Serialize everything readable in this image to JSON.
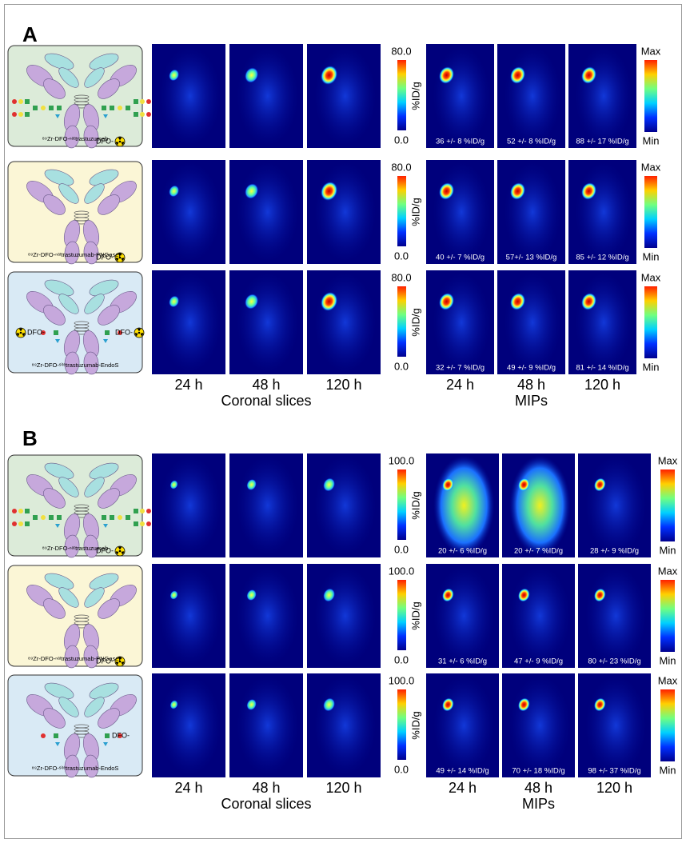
{
  "panels": [
    {
      "label": "A",
      "scale_left": {
        "max": "80.0",
        "min": "0.0",
        "unit": "%ID/g"
      },
      "scale_right": {
        "max": "Max",
        "min": "Min"
      },
      "rows": [
        {
          "construct": "⁸⁹Zr-DFO-ⁿᵃᵗtrastuzumab",
          "dfo_labels": [
            "DFO-"
          ],
          "mip_values": [
            "36 +/- 8 %ID/g",
            "52 +/- 8 %ID/g",
            "88 +/- 17 %ID/g"
          ]
        },
        {
          "construct": "⁸⁹Zr-DFO-ⁿᵃᵗtrastuzumab-PNGaseF",
          "dfo_labels": [
            "DFO-"
          ],
          "mip_values": [
            "40 +/- 7 %ID/g",
            "57+/- 13 %ID/g",
            "85 +/- 12 %ID/g"
          ]
        },
        {
          "construct": "⁸⁹Zr-DFO-ˢⁱᵗᵉtrastuzumab-EndoS",
          "dfo_labels": [
            "DFO-",
            "DFO-"
          ],
          "mip_values": [
            "32 +/- 7 %ID/g",
            "49 +/- 9 %ID/g",
            "81 +/- 14 %ID/g"
          ]
        }
      ],
      "coronal_times": [
        "24 h",
        "48 h",
        "120 h"
      ],
      "mip_times": [
        "24 h",
        "48 h",
        "120 h"
      ],
      "coronal_caption": "Coronal slices",
      "mip_caption": "MIPs"
    },
    {
      "label": "B",
      "scale_left": {
        "max": "100.0",
        "min": "0.0",
        "unit": "%ID/g"
      },
      "scale_right": {
        "max": "Max",
        "min": "Min"
      },
      "rows": [
        {
          "construct": "⁸⁹Zr-DFO-ⁿᵃᵗtrastuzumab",
          "dfo_labels": [
            "DFO-"
          ],
          "mip_values": [
            "20 +/- 6 %ID/g",
            "20 +/- 7 %ID/g",
            "28 +/- 9 %ID/g"
          ]
        },
        {
          "construct": "⁸⁹Zr-DFO-ⁿᵃᵗtrastuzumab-PNGaseF",
          "dfo_labels": [
            "DFO-"
          ],
          "mip_values": [
            "31 +/- 6 %ID/g",
            "47 +/- 9 %ID/g",
            "80 +/- 23 %ID/g"
          ]
        },
        {
          "construct": "⁸⁹Zr-DFO-ˢⁱᵗᵉtrastuzumab-EndoS",
          "dfo_labels": [
            "DFO-"
          ],
          "mip_values": [
            "49 +/- 14 %ID/g",
            "70 +/- 18 %ID/g",
            "98 +/- 37 %ID/g"
          ]
        }
      ],
      "coronal_times": [
        "24 h",
        "48 h",
        "120 h"
      ],
      "mip_times": [
        "24 h",
        "48 h",
        "120 h"
      ],
      "coronal_caption": "Coronal slices",
      "mip_caption": "MIPs"
    }
  ]
}
